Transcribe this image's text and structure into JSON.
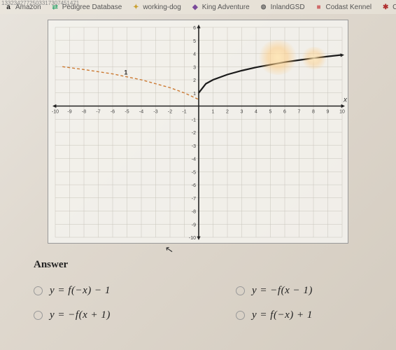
{
  "url_fragment": "1332342772503317307451471",
  "bookmarks": [
    {
      "label": "Amazon",
      "icon": "a",
      "icon_color": "#222"
    },
    {
      "label": "Pedigree Database",
      "icon": "⇄",
      "icon_color": "#4a7"
    },
    {
      "label": "working-dog",
      "icon": "✦",
      "icon_color": "#c9a030"
    },
    {
      "label": "King Adventure",
      "icon": "◆",
      "icon_color": "#7a4a9a"
    },
    {
      "label": "InlandGSD",
      "icon": "⊚",
      "icon_color": "#555"
    },
    {
      "label": "Codast Kennel",
      "icon": "■",
      "icon_color": "#d06a6a"
    },
    {
      "label": "Cockatiel Bre",
      "icon": "✱",
      "icon_color": "#b03030"
    }
  ],
  "chart": {
    "type": "line",
    "xlim": [
      -10,
      10
    ],
    "ylim": [
      -10,
      6
    ],
    "xtick_step": 1,
    "ytick_step": 1,
    "grid_color": "#c8c4bb",
    "axis_color": "#222",
    "background": "rgba(245,243,238,0.85)",
    "x_label": "x",
    "series": [
      {
        "name": "solid_curve",
        "color": "#1a1a1a",
        "width": 2.2,
        "dash": "none",
        "points": [
          [
            0,
            1
          ],
          [
            0.5,
            1.7
          ],
          [
            1,
            2.0
          ],
          [
            2,
            2.4
          ],
          [
            3,
            2.7
          ],
          [
            4,
            2.95
          ],
          [
            5,
            3.15
          ],
          [
            6,
            3.35
          ],
          [
            7,
            3.5
          ],
          [
            8,
            3.65
          ],
          [
            9,
            3.78
          ],
          [
            10,
            3.9
          ]
        ]
      },
      {
        "name": "dashed_curve",
        "color": "#cc7a33",
        "width": 1.4,
        "dash": "4 3",
        "points": [
          [
            -9.5,
            3.0
          ],
          [
            -8,
            2.78
          ],
          [
            -6,
            2.45
          ],
          [
            -4,
            2.0
          ],
          [
            -2,
            1.4
          ],
          [
            -1,
            1.0
          ],
          [
            0,
            0.5
          ]
        ]
      }
    ],
    "marker_label": "1",
    "marker_pos": [
      -5.2,
      2.4
    ]
  },
  "answer_heading": "Answer",
  "options": [
    {
      "id": "a",
      "tex": "y = f(−x) − 1"
    },
    {
      "id": "b",
      "tex": "y = −f(x − 1)"
    },
    {
      "id": "c",
      "tex": "y = −f(x + 1)"
    },
    {
      "id": "d",
      "tex": "y = f(−x) + 1"
    }
  ]
}
